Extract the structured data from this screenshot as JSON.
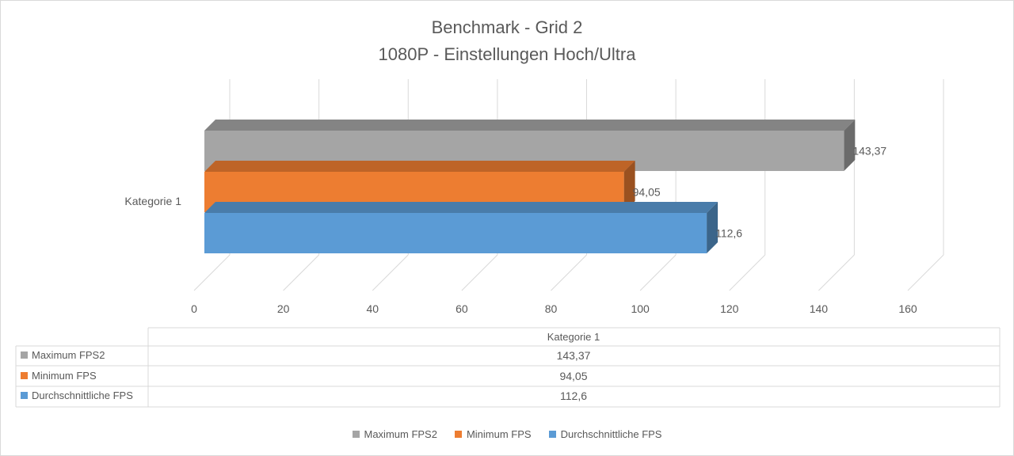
{
  "chart_data": {
    "type": "bar",
    "orientation": "horizontal",
    "style": "3d",
    "title": "Benchmark - Grid 2",
    "subtitle": "1080P - Einstellungen Hoch/Ultra",
    "categories": [
      "Kategorie 1"
    ],
    "series": [
      {
        "name": "Maximum FPS2",
        "values": [
          143.37
        ],
        "label": "143,37",
        "color": "#a5a5a5"
      },
      {
        "name": "Minimum FPS",
        "values": [
          94.05
        ],
        "label": "94,05",
        "color": "#ed7d31"
      },
      {
        "name": "Durchschnittliche FPS",
        "values": [
          112.6
        ],
        "label": "112,6",
        "color": "#5b9bd5"
      }
    ],
    "xlim": [
      0,
      160
    ],
    "ticks": [
      0,
      20,
      40,
      60,
      80,
      100,
      120,
      140,
      160
    ],
    "tick_labels": [
      "0",
      "20",
      "40",
      "60",
      "80",
      "100",
      "120",
      "140",
      "160"
    ],
    "grid": true,
    "legend": "bottom",
    "data_table": {
      "header": "Kategorie 1",
      "rows": [
        {
          "label": "Maximum FPS2",
          "value": "143,37"
        },
        {
          "label": "Minimum FPS",
          "value": "94,05"
        },
        {
          "label": "Durchschnittliche FPS",
          "value": "112,6"
        }
      ]
    }
  }
}
